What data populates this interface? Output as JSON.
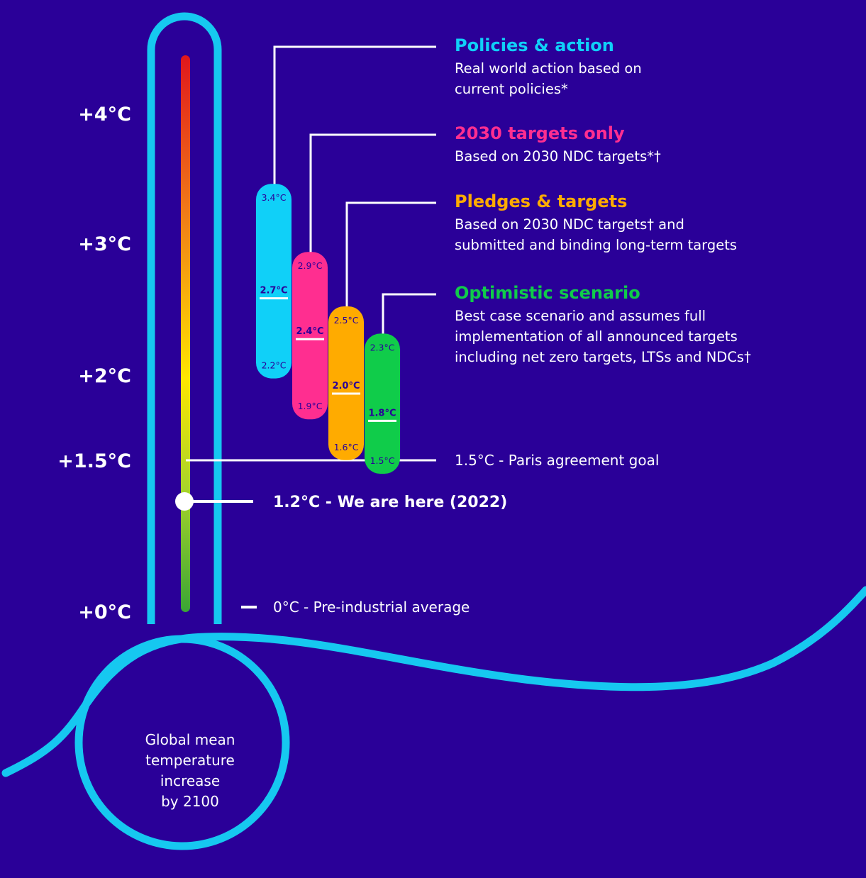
{
  "colors": {
    "background": "#2a0098",
    "thermometer_outline": "#16c8f0",
    "white": "#ffffff"
  },
  "chart_data": {
    "type": "range-bar",
    "ylabel": "Global mean temperature increase by 2100",
    "bulb_lines": [
      "Global mean",
      "temperature",
      "increase",
      "by 2100"
    ],
    "scale_ticks": [
      {
        "value": 4,
        "label": "+4°C"
      },
      {
        "value": 3,
        "label": "+3°C"
      },
      {
        "value": 2,
        "label": "+2°C"
      },
      {
        "value": 1.5,
        "label": "+1.5°C"
      },
      {
        "value": 0,
        "label": "+0°C"
      }
    ],
    "current_marker": {
      "value": 1.2,
      "label": "1.2°C - We are here (2022)"
    },
    "references": [
      {
        "value": 1.5,
        "label": "1.5°C - Paris agreement goal"
      },
      {
        "value": 0,
        "label": "0°C - Pre-industrial average"
      }
    ],
    "scenarios": [
      {
        "name": "Policies & action",
        "desc": [
          "Real world action based on",
          "current policies*"
        ],
        "color": "#10d0f8",
        "low": 2.2,
        "central": 2.7,
        "high": 3.4,
        "low_label": "2.2°C",
        "central_label": "2.7°C",
        "high_label": "3.4°C"
      },
      {
        "name": "2030 targets only",
        "desc": [
          "Based on 2030 NDC targets*†"
        ],
        "color": "#ff2e90",
        "low": 1.9,
        "central": 2.4,
        "high": 2.9,
        "low_label": "1.9°C",
        "central_label": "2.4°C",
        "high_label": "2.9°C"
      },
      {
        "name": "Pledges & targets",
        "desc": [
          "Based on 2030 NDC targets† and",
          "submitted and binding long-term targets"
        ],
        "color": "#ffab00",
        "low": 1.6,
        "central": 2.0,
        "high": 2.5,
        "low_label": "1.6°C",
        "central_label": "2.0°C",
        "high_label": "2.5°C"
      },
      {
        "name": "Optimistic scenario",
        "desc": [
          "Best case scenario and assumes full",
          "implementation of all announced targets",
          "including net zero targets, LTSs and NDCs†"
        ],
        "color": "#10cc4a",
        "low": 1.5,
        "central": 1.8,
        "high": 2.3,
        "low_label": "1.5°C",
        "central_label": "1.8°C",
        "high_label": "2.3°C"
      }
    ]
  }
}
